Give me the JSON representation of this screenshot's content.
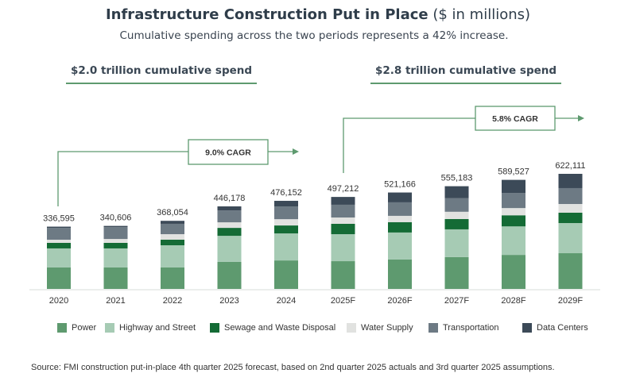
{
  "chart_data": {
    "type": "bar",
    "stacked": true,
    "title": "Infrastructure Construction Put in Place",
    "title_unit": "($ in millions)",
    "subtitle": "Cumulative spending across the two periods represents a 42% increase.",
    "categories": [
      "2020",
      "2021",
      "2022",
      "2023",
      "2024",
      "2025F",
      "2026F",
      "2027F",
      "2028F",
      "2029F"
    ],
    "totals": [
      336595,
      340606,
      368054,
      446178,
      476152,
      497212,
      521166,
      555183,
      589527,
      622111
    ],
    "total_labels": [
      "336,595",
      "340,606",
      "368,054",
      "446,178",
      "476,152",
      "497,212",
      "521,166",
      "555,183",
      "589,527",
      "622,111"
    ],
    "series": [
      {
        "name": "Power",
        "color": "#5e9a6f",
        "values": [
          116000,
          116000,
          116000,
          146000,
          154000,
          150000,
          159000,
          172000,
          184000,
          193000
        ]
      },
      {
        "name": "Highway and Street",
        "color": "#a6cbb4",
        "values": [
          103000,
          103000,
          120000,
          141000,
          146000,
          146000,
          146000,
          150000,
          154000,
          163000
        ]
      },
      {
        "name": "Sewage and Waste Disposal",
        "color": "#146b35",
        "values": [
          30000,
          30000,
          30000,
          43000,
          43000,
          56000,
          56000,
          56000,
          60000,
          56000
        ]
      },
      {
        "name": "Water Supply",
        "color": "#e1e2e0",
        "values": [
          17000,
          21000,
          30000,
          30000,
          34000,
          34000,
          34000,
          39000,
          39000,
          47000
        ]
      },
      {
        "name": "Transportation",
        "color": "#6d7a84",
        "values": [
          64000,
          64000,
          56000,
          64000,
          69000,
          69000,
          73000,
          73000,
          82000,
          86000
        ]
      },
      {
        "name": "Data Centers",
        "color": "#3c4a58",
        "values": [
          6595,
          6606,
          16054,
          22178,
          30152,
          42212,
          53166,
          65183,
          70527,
          77111
        ]
      }
    ],
    "ylim": [
      0,
      650000
    ],
    "grid": false,
    "legend_position": "bottom",
    "annotations": {
      "period1": {
        "label": "$2.0 trillion cumulative spend",
        "cagr": "9.0% CAGR"
      },
      "period2": {
        "label": "$2.8  trillion cumulative spend",
        "cagr": "5.8% CAGR"
      }
    },
    "source": "Source: FMI construction put-in-place 4th quarter 2025 forecast, based on 2nd quarter 2025 actuals and 3rd quarter 2025 assumptions."
  },
  "colors": {
    "accent": "#5e9a6f",
    "text": "#2f3d4a"
  }
}
